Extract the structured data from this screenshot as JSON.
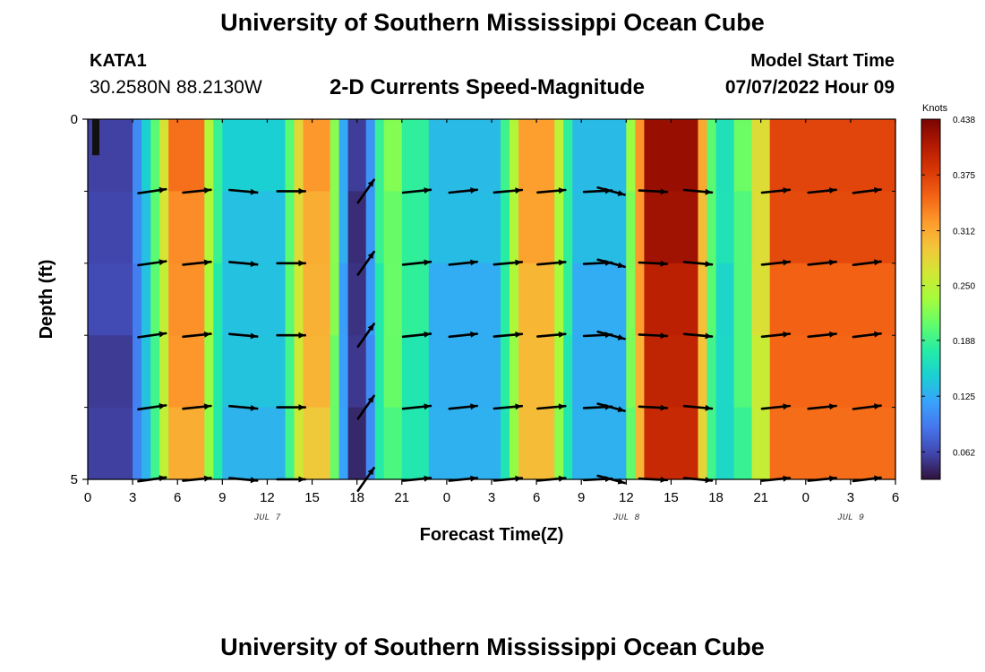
{
  "page": {
    "title": "University of Southern Mississippi Ocean Cube",
    "footer_title": "University of Southern Mississippi Ocean Cube",
    "station": "KATA1",
    "coords": "30.2580N  88.2130W",
    "subtitle": "2-D Currents Speed-Magnitude",
    "model_start_label": "Model Start Time",
    "model_start_value": "07/07/2022 Hour 09"
  },
  "colors": {
    "palette": [
      "#30123b",
      "#4145ab",
      "#4675ed",
      "#39a2fc",
      "#1bcfd4",
      "#24eca6",
      "#61fc6c",
      "#a4fc3b",
      "#d1e834",
      "#f3c63a",
      "#fe9b2d",
      "#f36315",
      "#d93806",
      "#b11901",
      "#7a0403"
    ],
    "arrow": "#000000"
  },
  "chart_data": {
    "type": "heatmap",
    "title": "2-D Currents Speed-Magnitude",
    "xlabel": "Forecast Time(Z)",
    "ylabel": "Depth (ft)",
    "xlim": [
      0,
      54
    ],
    "ylim": [
      0,
      5
    ],
    "y_inverted": true,
    "x_ticks": [
      {
        "x": 0,
        "label": "0"
      },
      {
        "x": 3,
        "label": "3"
      },
      {
        "x": 6,
        "label": "6"
      },
      {
        "x": 9,
        "label": "9"
      },
      {
        "x": 12,
        "label": "12"
      },
      {
        "x": 15,
        "label": "15"
      },
      {
        "x": 18,
        "label": "18"
      },
      {
        "x": 21,
        "label": "21"
      },
      {
        "x": 24,
        "label": "0"
      },
      {
        "x": 27,
        "label": "3"
      },
      {
        "x": 30,
        "label": "6"
      },
      {
        "x": 33,
        "label": "9"
      },
      {
        "x": 36,
        "label": "12"
      },
      {
        "x": 39,
        "label": "15"
      },
      {
        "x": 42,
        "label": "18"
      },
      {
        "x": 45,
        "label": "21"
      },
      {
        "x": 48,
        "label": "0"
      },
      {
        "x": 51,
        "label": "3"
      },
      {
        "x": 54,
        "label": "6"
      }
    ],
    "y_ticks": [
      {
        "y": 0,
        "label": "0"
      },
      {
        "y": 5,
        "label": "5"
      }
    ],
    "y_minor_ticks": [
      1,
      2,
      3,
      4
    ],
    "date_labels": [
      {
        "x": 12,
        "label": "JUL 7"
      },
      {
        "x": 36,
        "label": "JUL 8"
      },
      {
        "x": 51,
        "label": "JUL 9"
      }
    ],
    "colorbar": {
      "label": "Knots",
      "min": 0.031,
      "max": 0.438,
      "ticks": [
        0.062,
        0.125,
        0.188,
        0.25,
        0.312,
        0.375,
        0.438
      ],
      "tick_labels": [
        "0.062",
        "0.125",
        "0.188",
        "0.250",
        "0.312",
        "0.375",
        "0.438"
      ]
    },
    "columns": [
      {
        "x0": 0,
        "x1": 3,
        "speed": 0.06
      },
      {
        "x0": 3,
        "x1": 3.6,
        "speed": 0.1
      },
      {
        "x0": 3.6,
        "x1": 4.2,
        "speed": 0.14
      },
      {
        "x0": 4.2,
        "x1": 4.8,
        "speed": 0.2
      },
      {
        "x0": 4.8,
        "x1": 5.4,
        "speed": 0.26
      },
      {
        "x0": 5.4,
        "x1": 7.8,
        "speed": 0.33
      },
      {
        "x0": 7.8,
        "x1": 8.4,
        "speed": 0.24
      },
      {
        "x0": 8.4,
        "x1": 9.0,
        "speed": 0.18
      },
      {
        "x0": 9.0,
        "x1": 13.2,
        "speed": 0.14
      },
      {
        "x0": 13.2,
        "x1": 13.8,
        "speed": 0.2
      },
      {
        "x0": 13.8,
        "x1": 14.4,
        "speed": 0.27
      },
      {
        "x0": 14.4,
        "x1": 16.2,
        "speed": 0.31
      },
      {
        "x0": 16.2,
        "x1": 16.8,
        "speed": 0.22
      },
      {
        "x0": 16.8,
        "x1": 17.4,
        "speed": 0.12
      },
      {
        "x0": 17.4,
        "x1": 18.6,
        "speed": 0.05
      },
      {
        "x0": 18.6,
        "x1": 19.2,
        "speed": 0.11
      },
      {
        "x0": 19.2,
        "x1": 19.8,
        "speed": 0.18
      },
      {
        "x0": 19.8,
        "x1": 21.0,
        "speed": 0.21
      },
      {
        "x0": 21.0,
        "x1": 22.8,
        "speed": 0.18
      },
      {
        "x0": 22.8,
        "x1": 27.6,
        "speed": 0.13
      },
      {
        "x0": 27.6,
        "x1": 28.2,
        "speed": 0.18
      },
      {
        "x0": 28.2,
        "x1": 28.8,
        "speed": 0.24
      },
      {
        "x0": 28.8,
        "x1": 31.2,
        "speed": 0.31
      },
      {
        "x0": 31.2,
        "x1": 31.8,
        "speed": 0.24
      },
      {
        "x0": 31.8,
        "x1": 32.4,
        "speed": 0.18
      },
      {
        "x0": 32.4,
        "x1": 36.0,
        "speed": 0.13
      },
      {
        "x0": 36.0,
        "x1": 36.6,
        "speed": 0.22
      },
      {
        "x0": 36.6,
        "x1": 37.2,
        "speed": 0.32
      },
      {
        "x0": 37.2,
        "x1": 40.8,
        "speed": 0.41
      },
      {
        "x0": 40.8,
        "x1": 41.4,
        "speed": 0.3
      },
      {
        "x0": 41.4,
        "x1": 42.0,
        "speed": 0.2
      },
      {
        "x0": 42.0,
        "x1": 43.2,
        "speed": 0.16
      },
      {
        "x0": 43.2,
        "x1": 44.4,
        "speed": 0.2
      },
      {
        "x0": 44.4,
        "x1": 45.6,
        "speed": 0.27
      },
      {
        "x0": 45.6,
        "x1": 54.0,
        "speed": 0.36
      }
    ],
    "arrow_rows": [
      1,
      2,
      3,
      4,
      5
    ],
    "arrows": [
      {
        "x": 4.3,
        "angle": 8
      },
      {
        "x": 7.3,
        "angle": 6
      },
      {
        "x": 10.4,
        "angle": -5
      },
      {
        "x": 13.6,
        "angle": 0
      },
      {
        "x": 18.6,
        "angle": 55
      },
      {
        "x": 22.0,
        "angle": 6
      },
      {
        "x": 25.1,
        "angle": 6
      },
      {
        "x": 28.1,
        "angle": 5
      },
      {
        "x": 31.0,
        "angle": 5
      },
      {
        "x": 34.1,
        "angle": 3
      },
      {
        "x": 35.0,
        "angle": -15
      },
      {
        "x": 37.8,
        "angle": -3
      },
      {
        "x": 40.8,
        "angle": -5
      },
      {
        "x": 46.0,
        "angle": 6
      },
      {
        "x": 49.1,
        "angle": 6
      },
      {
        "x": 52.1,
        "angle": 7
      }
    ]
  }
}
